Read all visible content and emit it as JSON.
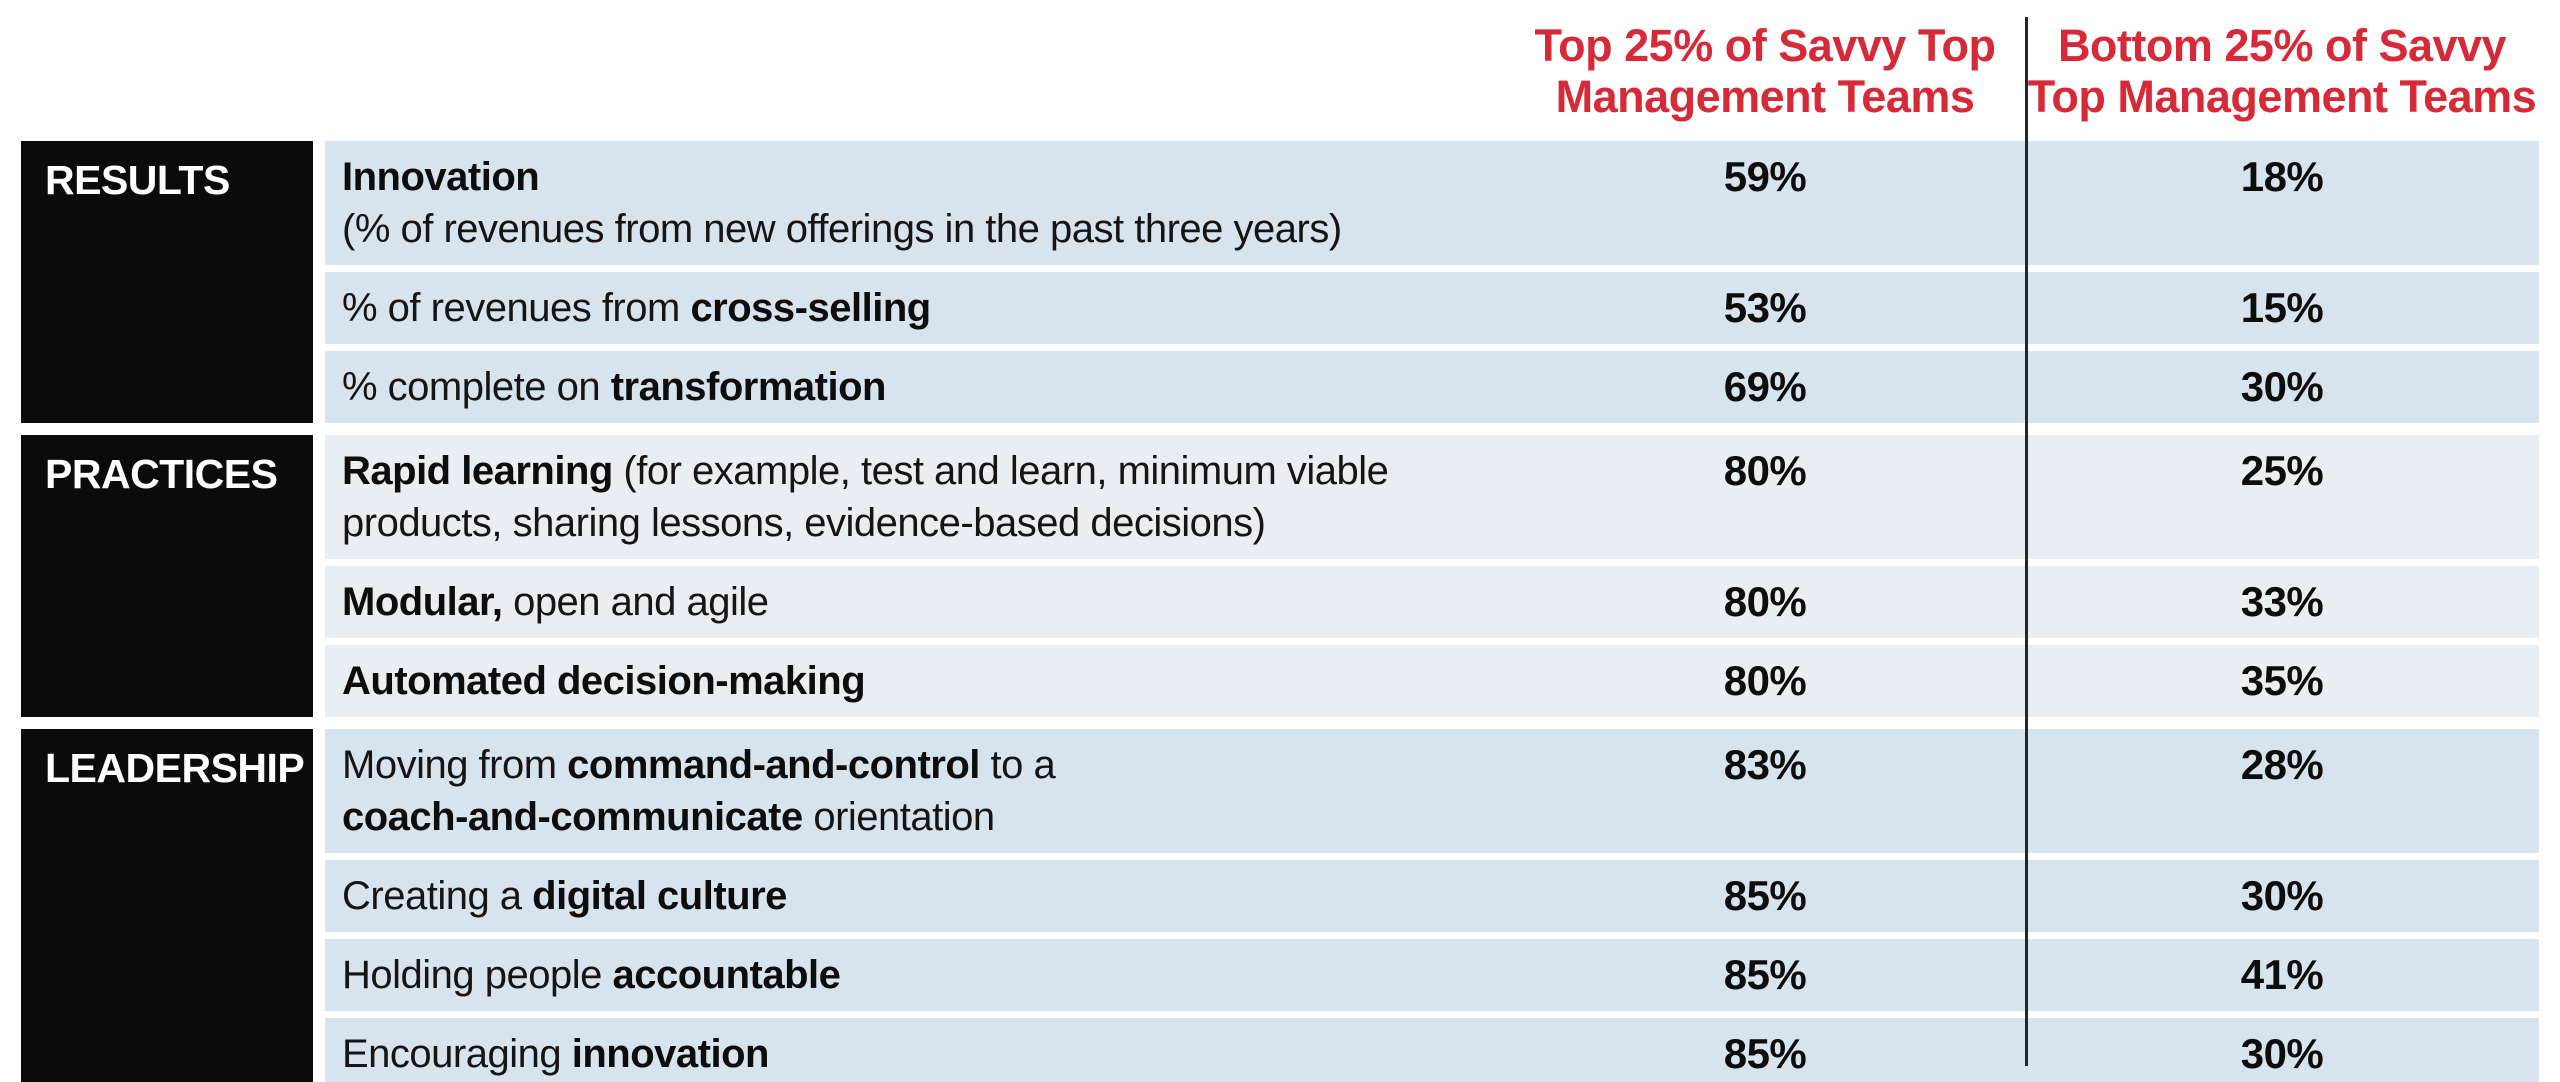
{
  "colors": {
    "accent_red": "#d62a38",
    "section_box_black": "#0b0b0b",
    "divider_line": "#24262a",
    "results_row_bg": "#d7e3ed",
    "practices_row_bg": "#e9eef3",
    "leadership_row_bg": "#d7e3ed",
    "row_text": "#151515",
    "page_bg": "#ffffff"
  },
  "table": {
    "header": {
      "col1_lines": [
        "Top 25% of Savvy Top",
        "Management Teams"
      ],
      "col2_lines": [
        "Bottom 25% of Savvy",
        "Top Management Teams"
      ]
    },
    "sections": [
      {
        "label": "RESULTS",
        "row_bg": "#d7e3ed",
        "rows": [
          {
            "tall": true,
            "segments": [
              {
                "t": "Innovation",
                "b": true
              },
              {
                "br": true
              },
              {
                "t": "(% of revenues from new offerings in the past three years)",
                "b": false
              }
            ],
            "values": [
              "59%",
              "18%"
            ]
          },
          {
            "tall": false,
            "segments": [
              {
                "t": "% of revenues from ",
                "b": false
              },
              {
                "t": "cross-selling",
                "b": true
              }
            ],
            "values": [
              "53%",
              "15%"
            ]
          },
          {
            "tall": false,
            "segments": [
              {
                "t": "% complete on ",
                "b": false
              },
              {
                "t": "transformation",
                "b": true
              }
            ],
            "values": [
              "69%",
              "30%"
            ]
          }
        ]
      },
      {
        "label": "PRACTICES",
        "row_bg": "#e9eef3",
        "rows": [
          {
            "tall": true,
            "segments": [
              {
                "t": "Rapid learning",
                "b": true
              },
              {
                "t": " (for example, test and learn, minimum viable",
                "b": false
              },
              {
                "br": true
              },
              {
                "t": "products, sharing lessons, evidence-based decisions)",
                "b": false
              }
            ],
            "values": [
              "80%",
              "25%"
            ]
          },
          {
            "tall": false,
            "segments": [
              {
                "t": "Modular,",
                "b": true
              },
              {
                "t": " open and agile",
                "b": false
              }
            ],
            "values": [
              "80%",
              "33%"
            ]
          },
          {
            "tall": false,
            "segments": [
              {
                "t": "Automated decision-making",
                "b": true
              }
            ],
            "values": [
              "80%",
              "35%"
            ]
          }
        ]
      },
      {
        "label": "LEADERSHIP",
        "row_bg": "#d7e3ed",
        "rows": [
          {
            "tall": true,
            "segments": [
              {
                "t": "Moving from ",
                "b": false
              },
              {
                "t": "command-and-control",
                "b": true
              },
              {
                "t": " to a",
                "b": false
              },
              {
                "br": true
              },
              {
                "t": "coach-and-communicate",
                "b": true
              },
              {
                "t": " orientation",
                "b": false
              }
            ],
            "values": [
              "83%",
              "28%"
            ]
          },
          {
            "tall": false,
            "segments": [
              {
                "t": "Creating a ",
                "b": false
              },
              {
                "t": "digital culture",
                "b": true
              }
            ],
            "values": [
              "85%",
              "30%"
            ]
          },
          {
            "tall": false,
            "segments": [
              {
                "t": "Holding people ",
                "b": false
              },
              {
                "t": "accountable",
                "b": true
              }
            ],
            "values": [
              "85%",
              "41%"
            ]
          },
          {
            "tall": false,
            "segments": [
              {
                "t": "Encouraging ",
                "b": false
              },
              {
                "t": "innovation",
                "b": true
              }
            ],
            "values": [
              "85%",
              "30%"
            ]
          }
        ]
      }
    ]
  },
  "chart_data": {
    "type": "table",
    "title": "",
    "columns": [
      "Section",
      "Item",
      "Top 25% of Savvy Top Management Teams",
      "Bottom 25% of Savvy Top Management Teams"
    ],
    "rows": [
      [
        "RESULTS",
        "Innovation (% of revenues from new offerings in the past three years)",
        "59%",
        "18%"
      ],
      [
        "RESULTS",
        "% of revenues from cross-selling",
        "53%",
        "15%"
      ],
      [
        "RESULTS",
        "% complete on transformation",
        "69%",
        "30%"
      ],
      [
        "PRACTICES",
        "Rapid learning (for example, test and learn, minimum viable products, sharing lessons, evidence-based decisions)",
        "80%",
        "25%"
      ],
      [
        "PRACTICES",
        "Modular, open and agile",
        "80%",
        "33%"
      ],
      [
        "PRACTICES",
        "Automated decision-making",
        "80%",
        "35%"
      ],
      [
        "LEADERSHIP",
        "Moving from command-and-control to a coach-and-communicate orientation",
        "83%",
        "28%"
      ],
      [
        "LEADERSHIP",
        "Creating a digital culture",
        "85%",
        "30%"
      ],
      [
        "LEADERSHIP",
        "Holding people accountable",
        "85%",
        "41%"
      ],
      [
        "LEADERSHIP",
        "Encouraging innovation",
        "85%",
        "30%"
      ]
    ],
    "series": [
      {
        "name": "Top 25% of Savvy Top Management Teams",
        "values": [
          59,
          53,
          69,
          80,
          80,
          80,
          83,
          85,
          85,
          85
        ]
      },
      {
        "name": "Bottom 25% of Savvy Top Management Teams",
        "values": [
          18,
          15,
          30,
          25,
          33,
          35,
          28,
          30,
          41,
          30
        ]
      }
    ]
  }
}
